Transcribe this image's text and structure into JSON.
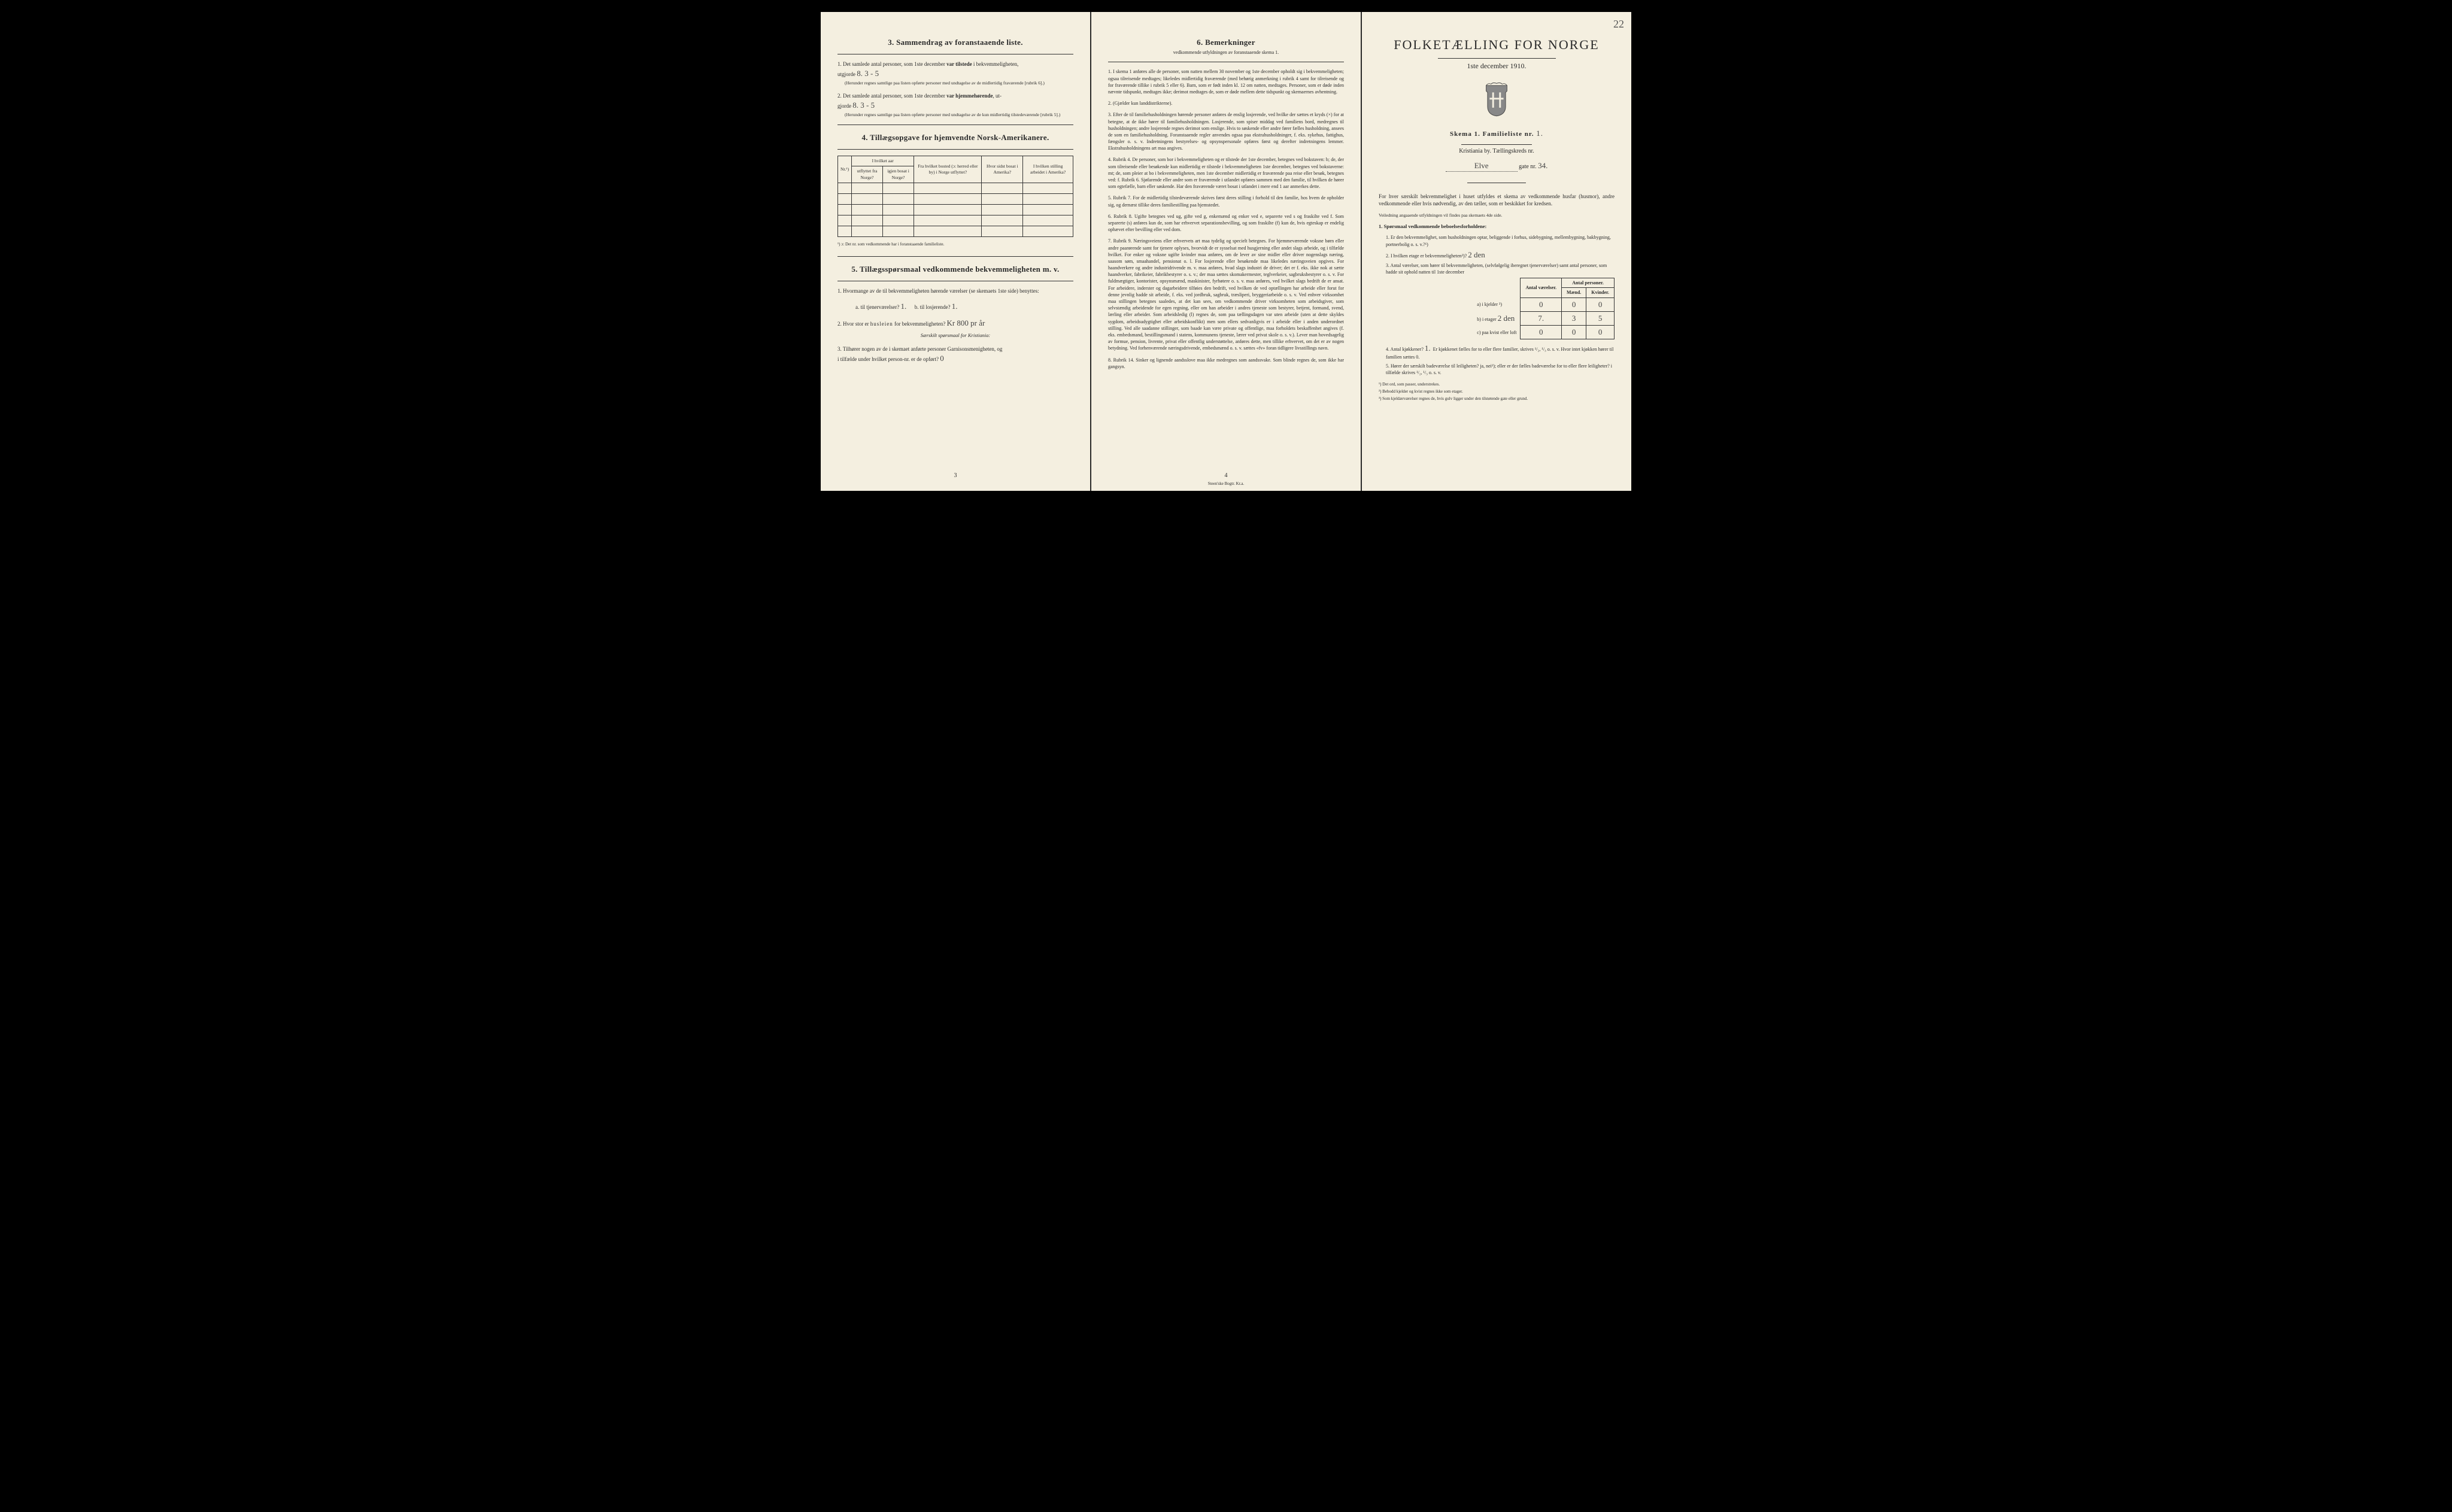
{
  "pageCorner": "22",
  "page3": {
    "section3": {
      "title": "3.   Sammendrag av foranstaaende liste.",
      "q1_pre": "1.  Det samlede antal personer, som 1ste december ",
      "q1_bold": "var tilstede",
      "q1_post": " i bekvemmeligheten,",
      "q1_line2": "utgjorde",
      "q1_hand": "8.     3 - 5",
      "q1_note": "(Herunder regnes samtlige paa listen opførte personer med undtagelse av de midlertidig fraværende [rubrik 6].)",
      "q2_pre": "2.  Det samlede antal personer, som 1ste december ",
      "q2_bold": "var hjemmehørende",
      "q2_post": ", ut-",
      "q2_line2": "gjorde",
      "q2_hand": "8.    3 - 5",
      "q2_note": "(Herunder regnes samtlige paa listen opførte personer med undtagelse av de kun midlertidig tilstedeværende [rubrik 5].)"
    },
    "section4": {
      "title": "4.   Tillægsopgave for hjemvendte Norsk-Amerikanere.",
      "headers": {
        "nr": "Nr.¹)",
        "aar": "I hvilket aar",
        "utflyttet": "utflyttet fra Norge?",
        "igjen": "igjen bosat i Norge?",
        "bosted": "Fra hvilket bosted (ɔ: herred eller by) i Norge utflyttet?",
        "sidst": "Hvor sidst bosat i Amerika?",
        "stilling": "I hvilken stilling arbeidet i Amerika?"
      },
      "footnote": "¹) ɔ: Det nr. som vedkommende har i foranstaaende familieliste."
    },
    "section5": {
      "title": "5.   Tillægsspørsmaal vedkommende bekvemmeligheten m. v.",
      "q1": "1.  Hvormange av de til bekvemmeligheten hørende værelser (se skemaets 1ste side) benyttes:",
      "q1a": "a.  til tjenerværelser?",
      "q1a_hand": "1.",
      "q1b": "b.  til losjerende?",
      "q1b_hand": "1.",
      "q2": "2.  Hvor stor er ",
      "q2_sp": "husleien",
      "q2_post": " for bekvemmeligheten?",
      "q2_hand": "Kr 800 pr år",
      "q2_note": "Særskilt spørsmaal for Kristiania:",
      "q3": "3.  Tilhører nogen av de i skemaet anførte personer Garnisonsmenigheten, og",
      "q3b": "i tilfælde under hvilket person-nr. er de opført?",
      "q3_hand": "0"
    },
    "footer": "3"
  },
  "page4": {
    "section6": {
      "title": "6.   Bemerkninger",
      "sub": "vedkommende utfyldningen av foranstaaende skema 1.",
      "items": [
        "1.  I skema 1 anføres alle de personer, som natten mellem 30 november og 1ste december opholdt sig i bekvemmeligheten; ogsaa tilreisende medtages; likeledes midlertidig fraværende (med behørig anmerkning i rubrik 4 samt for tilreisende og for fraværende tillike i rubrik 5 eller 6). Barn, som er født inden kl. 12 om natten, medtages. Personer, som er døde inden nævnte tidspunkt, medtages ikke; derimot medtages de, som er døde mellem dette tidspunkt og skemaernes avhentning.",
        "2.  (Gjælder kun landdistrikterne).",
        "3.  Efter de til familiehusholdningen hørende personer anføres de enslig losjerende, ved hvilke der sættes et kryds (×) for at betegne, at de ikke hører til familiehusholdningen. Losjerende, som spiser middag ved familiens bord, medregnes til husholdningen; andre losjerende regnes derimot som enslige. Hvis to søskende eller andre fører fælles husholdning, ansees de som en familiehusholdning.\n    Foranstaaende regler anvendes ogsaa paa ekstrahusholdninger, f. eks. sykehus, fattighus, fængsler o. s. v. Indretningens bestyrelses- og opsynspersonale opføres først og derefter indretningens lemmer. Ekstrahusholdningens art maa angives.",
        "4.  Rubrik 4. De personer, som bor i bekvemmeligheten og er tilstede der 1ste december, betegnes ved bokstaven: b; de, der som tilreisende eller besøkende kun midlertidig er tilstede i bekvemmeligheten 1ste december, betegnes ved bokstaverne: mt; de, som pleier at bo i bekvemmeligheten, men 1ste december midlertidig er fraværende paa reise eller besøk, betegnes ved: f.\n    Rubrik 6. Sjøfarende eller andre som er fraværende i utlandet opføres sammen med den familie, til hvilken de hører som egtefælle, barn eller søskende.\n    Har den fraværende været bosat i utlandet i mere end 1 aar anmerkes dette.",
        "5.  Rubrik 7. For de midlertidig tilstedeværende skrives først deres stilling i forhold til den familie, hos hvem de opholder sig, og dernæst tillike deres familiestilling paa hjemstedet.",
        "6.  Rubrik 8. Ugifte betegnes ved ug, gifte ved g, enkemænd og enker ved e, separerte ved s og fraskilte ved f. Som separerte (s) anføres kun de, som har erhvervet separationsbevilling, og som fraskilte (f) kun de, hvis egteskap er endelig ophævet efter bevilling eller ved dom.",
        "7.  Rubrik 9. Næringsveiens eller erhvervets art maa tydelig og specielt betegnes.\n    For hjemmeværende voksne børn eller andre paarørende samt for tjenere oplyses, hvorvidt de er sysselsat med husgjerning eller andet slags arbeide, og i tilfælde hvilket. For enker og voksne ugifte kvinder maa anføres, om de lever av sine midler eller driver nogenslags næring, saasom søm, smaahandel, pensionat o. l.\n    For losjerende eller besøkende maa likeledes næringsveien opgives.\n    For haandverkere og andre industridrivende m. v. maa anføres, hvad slags industri de driver; det er f. eks. ikke nok at sætte haandverker, fabrikeier, fabrikbestyrer o. s. v.; der maa sættes skomakermester, teglverkeier, sagbruksbestyrer o. s. v.\n    For fuldmægtiger, kontorister, opsynsmænd, maskinister, fyrbøtere o. s. v. maa anføres, ved hvilket slags bedrift de er ansat.\n    For arbeidere, inderster og dagarbeidere tilføies den bedrift, ved hvilken de ved optællingen har arbeide eller forut for denne jevnlig hadde sit arbeide, f. eks. ved jordbruk, sagbruk, træsliperi, bryggeriarbeide o. s. v.\n    Ved enhver virksomhet maa stillingen betegnes saaledes, at det kan sees, om vedkommende driver virksomheten som arbeidsgiver, som selvstændig arbeidende for egen regning, eller om han arbeider i andres tjeneste som bestyrer, betjent, formand, svend, lærling eller arbeider.\n    Som arbeidsledig (l) regnes de, som paa tællingsdagen var uten arbeide (uten at dette skyldes sygdom, arbeidsudygtighet eller arbeidskonflikt) men som ellers sedvanligvis er i arbeide eller i anden underordnet stilling.\n    Ved alle saadanne stillinger, som baade kan være private og offentlige, maa forholdets beskaffenhet angives (f. eks. embedsmand, bestillingsmand i statens, kommunens tjeneste, lærer ved privat skole o. s. v.).\n    Lever man hovedsagelig av formue, pension, livrente, privat eller offentlig understøttelse, anføres dette, men tillike erhvervet, om det er av nogen betydning.\n    Ved forhenværende næringsdrivende, embedsmænd o. s. v. sættes «fv» foran tidligere livsstillings navn.",
        "8.  Rubrik 14. Sinker og lignende aandsslove maa ikke medregnes som aandssvake.\n    Som blinde regnes de, som ikke har gangsyn."
      ]
    },
    "footer": "4",
    "imprint": "Steen'ske Bogtr.  Kr.a."
  },
  "page1": {
    "title": "FOLKETÆLLING FOR NORGE",
    "subtitle": "1ste december 1910.",
    "skema_pre": "Skema 1.   Familieliste nr.",
    "skema_hand": "1.",
    "city": "Kristiania by.   Tællingskreds nr.",
    "addr_hand_street": "Elve",
    "addr_post": "gate nr.",
    "addr_hand_no": "34.",
    "intro": "For hver særskilt bekvemmelighet i huset utfyldes et skema av vedkommende husfar (husmor), andre vedkommende eller hvis nødvendig, av den tæller, som er beskikket for kredsen.",
    "veil": "Veiledning angaaende utfyldningen vil findes paa skemaets 4de side.",
    "q1_head": "1.  Spørsmaal vedkommende beboelsesforholdene:",
    "q1_1": "1.  Er den bekvemmelighet, som husholdningen optar, beliggende i forhus, sidebygning, mellembygning, bakbygning, portnerbolig o. s. v.?¹)",
    "q1_2": "2.  I hvilken etage er bekvemmeligheten²)?",
    "q1_2_hand": "2 den",
    "q1_3": "3.  Antal værelser, som hører til bekvemmeligheten, (selvfølgelig iberegnet tjenerværelser) samt antal personer, som hadde sit ophold natten til 1ste december",
    "rooms": {
      "header_vaer": "Antal værelser.",
      "header_pers": "Antal personer.",
      "header_m": "Mænd.",
      "header_k": "Kvinder.",
      "row_a": "a) i kjelder ³)",
      "row_b_pre": "b) i etager",
      "row_b_hand": "2 den",
      "row_c": "c) paa kvist eller loft",
      "a": [
        "0",
        "0",
        "0"
      ],
      "b": [
        "7.",
        "3",
        "5"
      ],
      "c": [
        "0",
        "0",
        "0"
      ]
    },
    "q1_4": "4.  Antal kjøkkener?",
    "q1_4_hand": "1.",
    "q1_4_post": "Er kjøkkenet fælles for to eller flere familier, skrives ¹/₂, ¹/₃ o. s. v.  Hvor intet kjøkken hører til familien sættes 0.",
    "q1_5": "5.  Hører der særskilt badeværelse til leiligheten?  ja, nei¹); eller er der fælles badeværelse for to eller flere leiligheter? i tilfælde skrives ¹/₂, ¹/₃ o. s. v.",
    "notes": [
      "¹) Det ord, som passer, understrekes.",
      "²) Bebodd kjelder og kvist regnes ikke som etager.",
      "³) Som kjeldærværelser regnes de, hvis gulv ligger under den tilstøtende gate eller grund."
    ]
  }
}
